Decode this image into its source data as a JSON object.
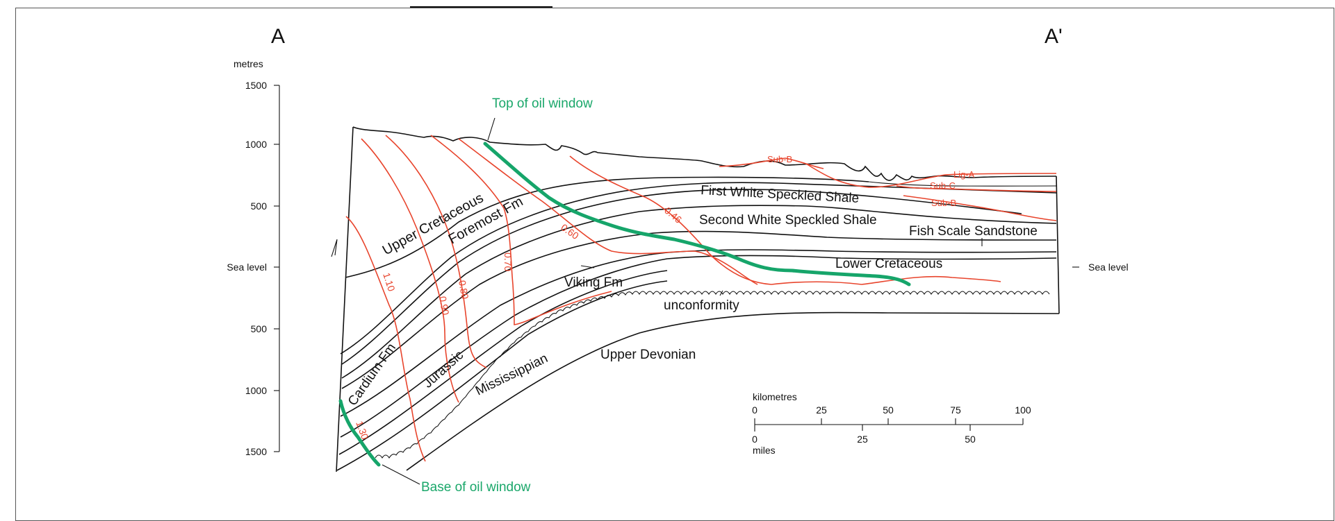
{
  "section": {
    "end_left": "A",
    "end_right": "A'",
    "depth_unit": "metres",
    "depth_ticks": [
      "1500",
      "1000",
      "500",
      "Sea level",
      "500",
      "1000",
      "1500"
    ],
    "right_sea_level": "Sea level"
  },
  "formations": {
    "upper_cretaceous": "Upper Cretaceous",
    "foremost": "Foremost Fm",
    "first_white_speckled": "First White Speckled Shale",
    "second_white_speckled": "Second White Speckled Shale",
    "fish_scale": "Fish Scale Sandstone",
    "lower_cretaceous": "Lower Cretaceous",
    "viking": "Viking Fm",
    "unconformity": "unconformity",
    "upper_devonian": "Upper Devonian",
    "mississippian": "Mississippian",
    "jurassic": "Jurassic",
    "cardium": "Cardium Fm"
  },
  "oil_window": {
    "top": "Top of oil window",
    "base": "Base of oil window"
  },
  "isoreflectance": [
    "1.10",
    "0.90",
    "0.80",
    "0.70",
    "0.60",
    "0.46",
    "1.30"
  ],
  "rank_labels": {
    "sub_b_top": "Sub-B",
    "lig_a": "Lig-A",
    "sub_c": "Sub-C",
    "sub_b_right": "Sub-B"
  },
  "scale_bar": {
    "km_label": "kilometres",
    "km_ticks": [
      "0",
      "25",
      "50",
      "75",
      "100"
    ],
    "mi_label": "miles",
    "mi_ticks": [
      "0",
      "25",
      "50"
    ]
  },
  "colors": {
    "isoreflectance_lines": "#e8442c",
    "oil_window": "#16a56a",
    "strata": "#111111"
  }
}
